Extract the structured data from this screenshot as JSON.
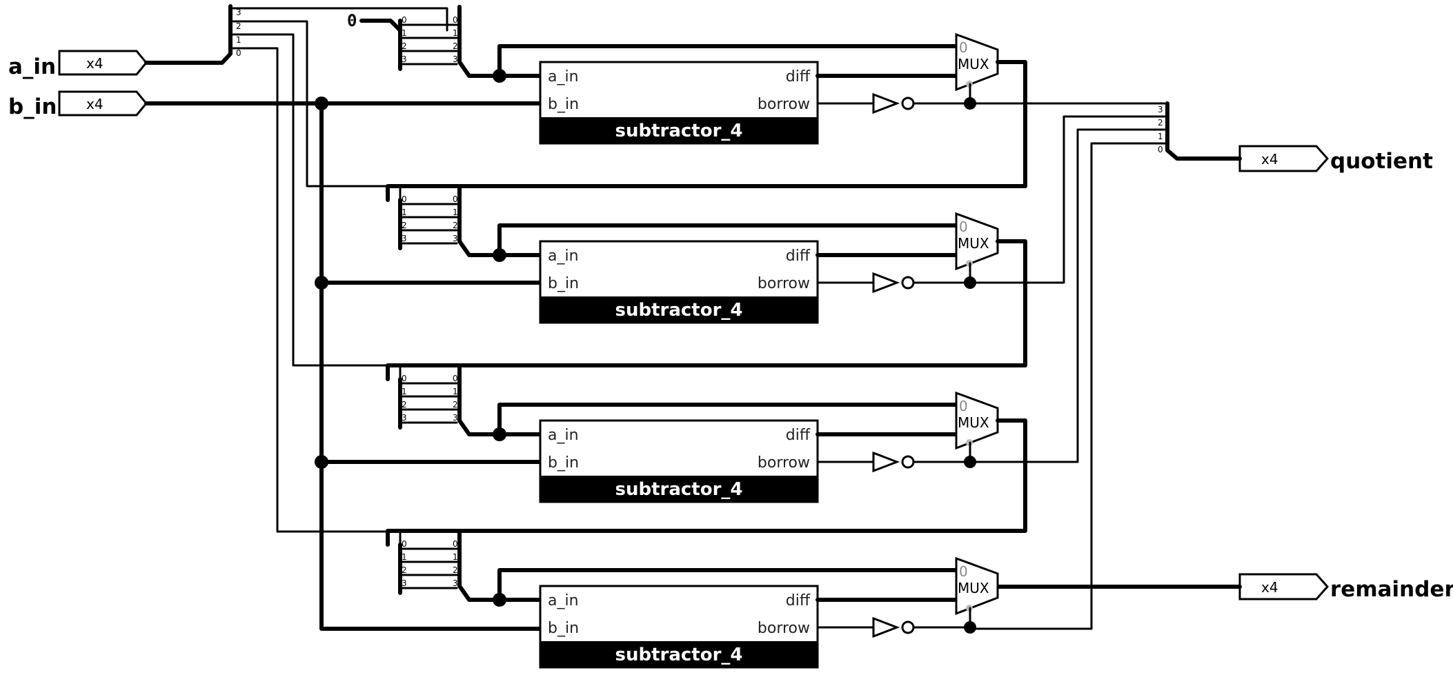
{
  "inputs": {
    "a_in": {
      "label": "a_in",
      "width": "x4"
    },
    "b_in": {
      "label": "b_in",
      "width": "x4"
    }
  },
  "outputs": {
    "quotient": {
      "label": "quotient",
      "width": "x4"
    },
    "remainder": {
      "label": "remainder",
      "width": "x4"
    }
  },
  "constant": "0",
  "stages": [
    {
      "name": "subtractor_4",
      "ports": {
        "a": "a_in",
        "b": "b_in",
        "diff": "diff",
        "borrow": "borrow"
      },
      "mux_label": "MUX",
      "mux_zero": "0"
    },
    {
      "name": "subtractor_4",
      "ports": {
        "a": "a_in",
        "b": "b_in",
        "diff": "diff",
        "borrow": "borrow"
      },
      "mux_label": "MUX",
      "mux_zero": "0"
    },
    {
      "name": "subtractor_4",
      "ports": {
        "a": "a_in",
        "b": "b_in",
        "diff": "diff",
        "borrow": "borrow"
      },
      "mux_label": "MUX",
      "mux_zero": "0"
    },
    {
      "name": "subtractor_4",
      "ports": {
        "a": "a_in",
        "b": "b_in",
        "diff": "diff",
        "borrow": "borrow"
      },
      "mux_label": "MUX",
      "mux_zero": "0"
    }
  ],
  "splitter_bits": [
    "0",
    "1",
    "2",
    "3"
  ]
}
